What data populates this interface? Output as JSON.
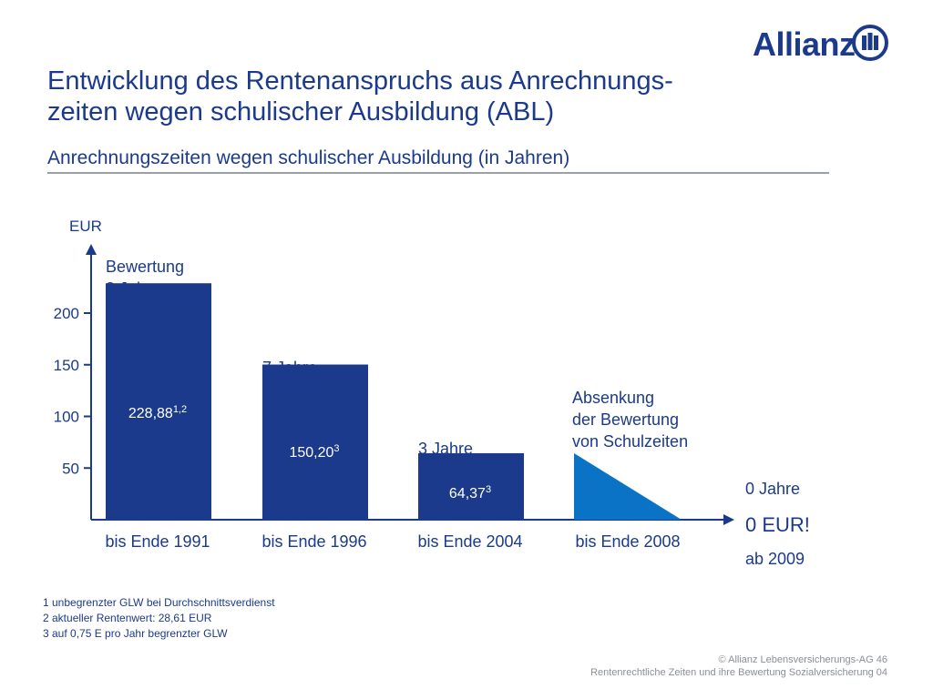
{
  "brand": {
    "name": "Allianz",
    "color": "#1b3a8c"
  },
  "title": "Entwicklung des Rentenanspruchs aus Anrechnungs-zeiten wegen schulischer Ausbildung (ABL)",
  "subtitle": "Anrechnungszeiten wegen schulischer Ausbildung (in Jahren)",
  "chart_data": {
    "type": "bar",
    "title": "",
    "ylabel": "EUR",
    "xlabel": "",
    "ylim": [
      0,
      240
    ],
    "yticks": [
      50,
      100,
      150,
      200
    ],
    "grid": false,
    "categories": [
      "bis Ende 1991",
      "bis Ende 1996",
      "bis Ende 2004",
      "bis Ende 2008"
    ],
    "values": [
      228.88,
      150.2,
      64.37,
      null
    ],
    "bar_colors": [
      "#1b3a8c",
      "#1b3a8c",
      "#1b3a8c",
      "#0a73c6"
    ],
    "value_labels": [
      {
        "text": "228,88",
        "sup": "1,2"
      },
      {
        "text": "150,20",
        "sup": "3"
      },
      {
        "text": "64,37",
        "sup": "3"
      },
      null
    ],
    "bar_annotations": [
      [
        "Bewertung",
        "8 Jahre"
      ],
      [
        "7 Jahre"
      ],
      [
        "3 Jahre"
      ],
      [
        "Absenkung",
        "der Bewertung",
        "von Schulzeiten"
      ]
    ],
    "declining_segment": {
      "category": "bis Ende 2008",
      "start_value": 64.37,
      "end_value": 0
    },
    "side_annotation": {
      "years": "0 Jahre",
      "value": "0 EUR!",
      "since": "ab 2009"
    }
  },
  "footnotes": [
    "1  unbegrenzter GLW bei Durchschnittsverdienst",
    "2  aktueller Rentenwert: 28,61 EUR",
    "3  auf 0,75 E pro Jahr begrenzter GLW"
  ],
  "footer": {
    "copyright": "© Allianz Lebensversicherungs-AG",
    "page": "46",
    "deck": "Rentenrechtliche Zeiten und ihre Bewertung",
    "module": "Sozialversicherung 04"
  }
}
